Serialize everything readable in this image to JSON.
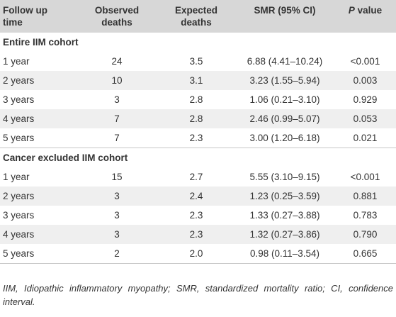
{
  "headers": {
    "col1": [
      "Follow up",
      "time"
    ],
    "col2": [
      "Observed",
      "deaths"
    ],
    "col3": [
      "Expected",
      "deaths"
    ],
    "col4": "SMR (95% CI)",
    "col5_p": "P",
    "col5_rest": " value"
  },
  "sections": [
    {
      "title": "Entire IIM cohort",
      "rows": [
        {
          "time": "1 year",
          "observed": "24",
          "expected": "3.5",
          "smr": "6.88 (4.41–10.24)",
          "p": "<0.001"
        },
        {
          "time": "2 years",
          "observed": "10",
          "expected": "3.1",
          "smr": "3.23 (1.55–5.94)",
          "p": "0.003"
        },
        {
          "time": "3 years",
          "observed": "3",
          "expected": "2.8",
          "smr": "1.06 (0.21–3.10)",
          "p": "0.929"
        },
        {
          "time": "4 years",
          "observed": "7",
          "expected": "2.8",
          "smr": "2.46 (0.99–5.07)",
          "p": "0.053"
        },
        {
          "time": "5 years",
          "observed": "7",
          "expected": "2.3",
          "smr": "3.00 (1.20–6.18)",
          "p": "0.021"
        }
      ]
    },
    {
      "title": "Cancer excluded IIM cohort",
      "rows": [
        {
          "time": "1 year",
          "observed": "15",
          "expected": "2.7",
          "smr": "5.55 (3.10–9.15)",
          "p": "<0.001"
        },
        {
          "time": "2 years",
          "observed": "3",
          "expected": "2.4",
          "smr": "1.23 (0.25–3.59)",
          "p": "0.881"
        },
        {
          "time": "3 years",
          "observed": "3",
          "expected": "2.3",
          "smr": "1.33 (0.27–3.88)",
          "p": "0.783"
        },
        {
          "time": "4 years",
          "observed": "3",
          "expected": "2.3",
          "smr": "1.32 (0.27–3.86)",
          "p": "0.790"
        },
        {
          "time": "5 years",
          "observed": "2",
          "expected": "2.0",
          "smr": "0.98 (0.11–3.54)",
          "p": "0.665"
        }
      ]
    }
  ],
  "footnote": "IIM, Idiopathic inflammatory myopathy; SMR, standardized mortality ratio; CI, confidence interval.",
  "colors": {
    "header_bg": "#d7d7d7",
    "stripe_bg": "#efefef",
    "text": "#333333"
  }
}
